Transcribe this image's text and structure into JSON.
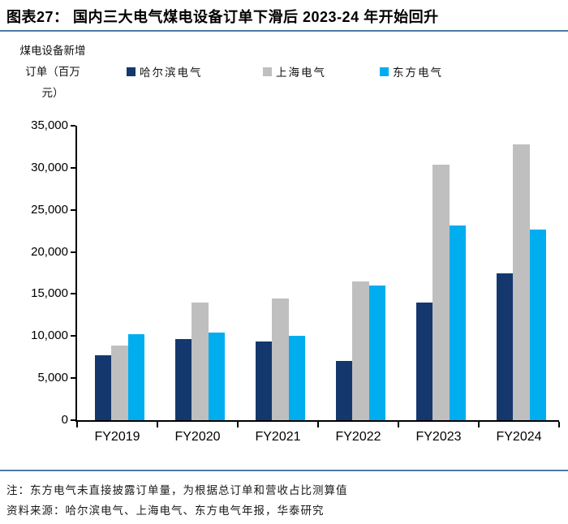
{
  "header": {
    "title": "图表27：  国内三大电气煤电设备订单下滑后 2023-24 年开始回升"
  },
  "y_axis_unit": {
    "line1": "煤电设备新增",
    "line2": "订单（百万",
    "line3": "元）"
  },
  "chart_data": {
    "type": "bar",
    "title": "国内三大电气煤电设备订单下滑后 2023-24 年开始回升",
    "ylabel": "煤电设备新增订单（百万元）",
    "xlabel": "",
    "categories": [
      "FY2019",
      "FY2020",
      "FY2021",
      "FY2022",
      "FY2023",
      "FY2024"
    ],
    "series": [
      {
        "name": "哈尔滨电气",
        "color": "#14386E",
        "values": [
          7700,
          9600,
          9400,
          7000,
          14000,
          17500
        ]
      },
      {
        "name": "上海电气",
        "color": "#BFBFBF",
        "values": [
          8900,
          14000,
          14500,
          16500,
          30400,
          32800
        ]
      },
      {
        "name": "东方电气",
        "color": "#00AEEF",
        "values": [
          10200,
          10400,
          10000,
          16000,
          23100,
          22700
        ]
      }
    ],
    "ylim": [
      0,
      35000
    ],
    "ytick_step": 5000,
    "grid": false,
    "legend_position": "top"
  },
  "legend_layout": {
    "item_lefts": [
      156,
      324,
      468
    ]
  },
  "footnotes": {
    "note": "注：东方电气未直接披露订单量，为根据总订单和营收占比测算值",
    "source": "资料来源：哈尔滨电气、上海电气、东方电气年报，华泰研究"
  },
  "colors": {
    "divider": "#4E7AA5",
    "axis": "#000000",
    "background": "#FFFFFF"
  }
}
